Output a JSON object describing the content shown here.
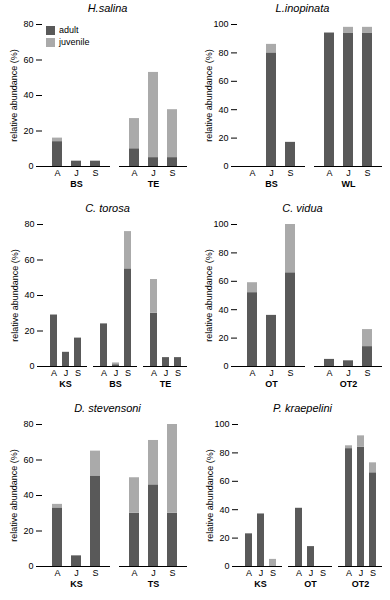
{
  "chart_data": [
    {
      "type": "bar",
      "title": "H.salina",
      "stacked": true,
      "categories": [
        "A",
        "J",
        "S",
        "A",
        "J",
        "S"
      ],
      "category_groups": [
        "BS",
        "BS",
        "BS",
        "TE",
        "TE",
        "TE"
      ],
      "series": [
        {
          "name": "adult",
          "color": "#595959",
          "values": [
            14,
            3,
            3,
            10,
            5,
            5
          ]
        },
        {
          "name": "juvenile",
          "color": "#aaaaaa",
          "values": [
            2,
            0,
            0,
            17,
            48,
            27
          ]
        }
      ],
      "ylabel": "relative abundance (%)",
      "ylim": [
        0,
        80
      ],
      "yticks": [
        0,
        20,
        40,
        60,
        80
      ],
      "legend": "upper left"
    },
    {
      "type": "bar",
      "title": "L.inopinata",
      "stacked": true,
      "categories": [
        "A",
        "J",
        "S",
        "A",
        "J",
        "S"
      ],
      "category_groups": [
        "BS",
        "BS",
        "BS",
        "WL",
        "WL",
        "WL"
      ],
      "series": [
        {
          "name": "adult",
          "color": "#595959",
          "values": [
            0,
            80,
            17,
            94,
            94,
            94
          ]
        },
        {
          "name": "juvenile",
          "color": "#aaaaaa",
          "values": [
            0,
            6,
            0,
            0,
            4,
            4
          ]
        }
      ],
      "ylabel": "relative abundance (%)",
      "ylim": [
        0,
        100
      ],
      "yticks": [
        0,
        20,
        40,
        60,
        80,
        100
      ]
    },
    {
      "type": "bar",
      "title": "C. torosa",
      "stacked": true,
      "categories": [
        "A",
        "J",
        "S",
        "A",
        "J",
        "S",
        "A",
        "J",
        "S"
      ],
      "category_groups": [
        "KS",
        "KS",
        "KS",
        "BS",
        "BS",
        "BS",
        "TE",
        "TE",
        "TE"
      ],
      "series": [
        {
          "name": "adult",
          "color": "#595959",
          "values": [
            29,
            8,
            16,
            24,
            1,
            55,
            30,
            5,
            5
          ]
        },
        {
          "name": "juvenile",
          "color": "#aaaaaa",
          "values": [
            0,
            0,
            0,
            0,
            1,
            21,
            19,
            0,
            0
          ]
        }
      ],
      "ylabel": "relative abundance (%)",
      "ylim": [
        0,
        80
      ],
      "yticks": [
        0,
        20,
        40,
        60,
        80
      ]
    },
    {
      "type": "bar",
      "title": "C. vidua",
      "stacked": true,
      "categories": [
        "A",
        "J",
        "S",
        "A",
        "J",
        "S"
      ],
      "category_groups": [
        "OT",
        "OT",
        "OT",
        "OT2",
        "OT2",
        "OT2"
      ],
      "series": [
        {
          "name": "adult",
          "color": "#595959",
          "values": [
            52,
            36,
            66,
            5,
            4,
            14
          ]
        },
        {
          "name": "juvenile",
          "color": "#aaaaaa",
          "values": [
            7,
            0,
            34,
            0,
            0,
            12
          ]
        }
      ],
      "ylabel": "relative abundance (%)",
      "ylim": [
        0,
        100
      ],
      "yticks": [
        0,
        20,
        40,
        60,
        80,
        100
      ]
    },
    {
      "type": "bar",
      "title": "D. stevensoni",
      "stacked": true,
      "categories": [
        "A",
        "J",
        "S",
        "A",
        "J",
        "S"
      ],
      "category_groups": [
        "KS",
        "KS",
        "KS",
        "TS",
        "TS",
        "TS"
      ],
      "series": [
        {
          "name": "adult",
          "color": "#595959",
          "values": [
            33,
            6,
            51,
            30,
            46,
            30
          ]
        },
        {
          "name": "juvenile",
          "color": "#aaaaaa",
          "values": [
            2,
            0,
            14,
            20,
            25,
            50
          ]
        }
      ],
      "ylabel": "relative abundance (%)",
      "ylim": [
        0,
        80
      ],
      "yticks": [
        0,
        20,
        40,
        60,
        80
      ]
    },
    {
      "type": "bar",
      "title": "P. kraepelini",
      "stacked": true,
      "categories": [
        "A",
        "J",
        "S",
        "A",
        "J",
        "S",
        "A",
        "J",
        "S"
      ],
      "category_groups": [
        "KS",
        "KS",
        "KS",
        "OT",
        "OT",
        "OT",
        "OT2",
        "OT2",
        "OT2"
      ],
      "series": [
        {
          "name": "adult",
          "color": "#595959",
          "values": [
            23,
            37,
            0,
            41,
            14,
            0,
            83,
            84,
            66
          ]
        },
        {
          "name": "juvenile",
          "color": "#aaaaaa",
          "values": [
            0,
            0,
            5,
            0,
            0,
            0,
            2,
            8,
            7
          ]
        }
      ],
      "ylabel": "relative abundance (%)",
      "ylim": [
        0,
        100
      ],
      "yticks": [
        0,
        20,
        40,
        60,
        80,
        100
      ]
    }
  ]
}
